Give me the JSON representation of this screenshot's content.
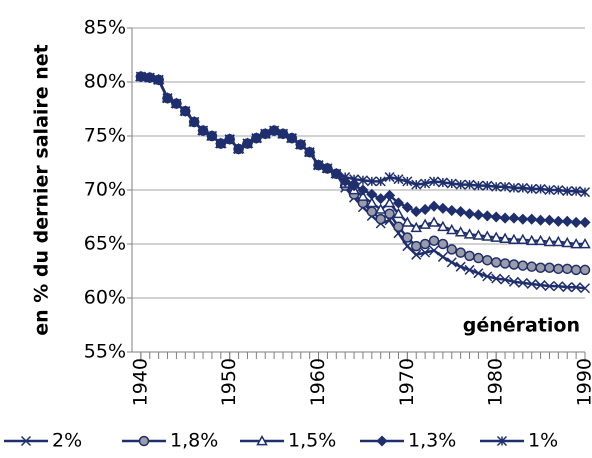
{
  "chart_data": {
    "type": "line",
    "x": [
      1940,
      1941,
      1942,
      1943,
      1944,
      1945,
      1946,
      1947,
      1948,
      1949,
      1950,
      1951,
      1952,
      1953,
      1954,
      1955,
      1956,
      1957,
      1958,
      1959,
      1960,
      1961,
      1962,
      1963,
      1964,
      1965,
      1966,
      1967,
      1968,
      1969,
      1970,
      1971,
      1972,
      1973,
      1974,
      1975,
      1976,
      1977,
      1978,
      1979,
      1980,
      1981,
      1982,
      1983,
      1984,
      1985,
      1986,
      1987,
      1988,
      1989,
      1990
    ],
    "series": [
      {
        "name": "2%",
        "color": "#1f2f6e",
        "marker": "x",
        "values": [
          80.5,
          80.4,
          80.2,
          78.5,
          78.0,
          77.3,
          76.3,
          75.5,
          75.0,
          74.3,
          74.7,
          73.8,
          74.3,
          74.8,
          75.2,
          75.5,
          75.2,
          74.8,
          74.2,
          73.5,
          72.3,
          72.0,
          71.5,
          70.2,
          69.3,
          68.4,
          67.6,
          66.9,
          67.2,
          66.0,
          64.8,
          64.0,
          64.2,
          64.4,
          63.8,
          63.3,
          62.9,
          62.6,
          62.3,
          62.0,
          61.8,
          61.7,
          61.5,
          61.4,
          61.3,
          61.2,
          61.1,
          61.1,
          61.0,
          61.0,
          60.9
        ]
      },
      {
        "name": "1,8%",
        "color": "#1f2f6e",
        "marker": "circle",
        "values": [
          80.5,
          80.4,
          80.2,
          78.5,
          78.0,
          77.3,
          76.3,
          75.5,
          75.0,
          74.3,
          74.7,
          73.8,
          74.3,
          74.8,
          75.2,
          75.5,
          75.2,
          74.8,
          74.2,
          73.5,
          72.3,
          72.0,
          71.5,
          70.4,
          69.6,
          68.8,
          68.0,
          67.3,
          67.8,
          66.6,
          65.6,
          64.8,
          65.0,
          65.3,
          65.0,
          64.5,
          64.2,
          63.9,
          63.7,
          63.5,
          63.3,
          63.2,
          63.1,
          63.0,
          62.9,
          62.8,
          62.8,
          62.7,
          62.7,
          62.6,
          62.6
        ]
      },
      {
        "name": "1,5%",
        "color": "#1f2f6e",
        "marker": "triangle",
        "values": [
          80.5,
          80.4,
          80.2,
          78.5,
          78.0,
          77.3,
          76.3,
          75.5,
          75.0,
          74.3,
          74.7,
          73.8,
          74.3,
          74.8,
          75.2,
          75.5,
          75.2,
          74.8,
          74.2,
          73.5,
          72.3,
          72.0,
          71.5,
          70.6,
          70.0,
          69.4,
          68.8,
          68.2,
          68.8,
          67.8,
          67.0,
          66.5,
          66.8,
          67.0,
          66.6,
          66.3,
          66.1,
          65.9,
          65.8,
          65.7,
          65.6,
          65.5,
          65.4,
          65.4,
          65.3,
          65.3,
          65.2,
          65.2,
          65.1,
          65.0,
          65.0
        ]
      },
      {
        "name": "1,3%",
        "color": "#1f2f6e",
        "marker": "diamond",
        "values": [
          80.5,
          80.4,
          80.2,
          78.5,
          78.0,
          77.3,
          76.3,
          75.5,
          75.0,
          74.3,
          74.7,
          73.8,
          74.3,
          74.8,
          75.2,
          75.5,
          75.2,
          74.8,
          74.2,
          73.5,
          72.3,
          72.0,
          71.5,
          70.8,
          70.4,
          70.0,
          69.6,
          69.2,
          69.5,
          68.8,
          68.4,
          68.0,
          68.2,
          68.5,
          68.3,
          68.1,
          68.0,
          67.8,
          67.7,
          67.6,
          67.5,
          67.4,
          67.4,
          67.3,
          67.3,
          67.2,
          67.2,
          67.1,
          67.1,
          67.0,
          67.0
        ]
      },
      {
        "name": "1%",
        "color": "#1f2f6e",
        "marker": "star",
        "values": [
          80.5,
          80.4,
          80.2,
          78.5,
          78.0,
          77.3,
          76.3,
          75.5,
          75.0,
          74.3,
          74.7,
          73.8,
          74.3,
          74.8,
          75.2,
          75.5,
          75.2,
          74.8,
          74.2,
          73.5,
          72.3,
          72.0,
          71.5,
          71.2,
          71.0,
          70.9,
          70.8,
          70.8,
          71.2,
          71.0,
          70.8,
          70.5,
          70.6,
          70.8,
          70.7,
          70.6,
          70.5,
          70.5,
          70.4,
          70.4,
          70.3,
          70.3,
          70.2,
          70.2,
          70.1,
          70.1,
          70.0,
          70.0,
          69.9,
          69.9,
          69.8
        ]
      }
    ],
    "ylabel": "en % du dernier salaire net",
    "annotation": "génération",
    "xlim": [
      1939,
      1990
    ],
    "xticks": [
      1940,
      1950,
      1960,
      1970,
      1980,
      1990
    ],
    "ylim": [
      55,
      85
    ],
    "yticks": [
      {
        "value": 55,
        "label": "55%"
      },
      {
        "value": 60,
        "label": "60%"
      },
      {
        "value": 65,
        "label": "65%"
      },
      {
        "value": 70,
        "label": "70%"
      },
      {
        "value": 75,
        "label": "75%"
      },
      {
        "value": 80,
        "label": "80%"
      },
      {
        "value": 85,
        "label": "85%"
      }
    ],
    "grid": true,
    "legend": "bottom"
  }
}
